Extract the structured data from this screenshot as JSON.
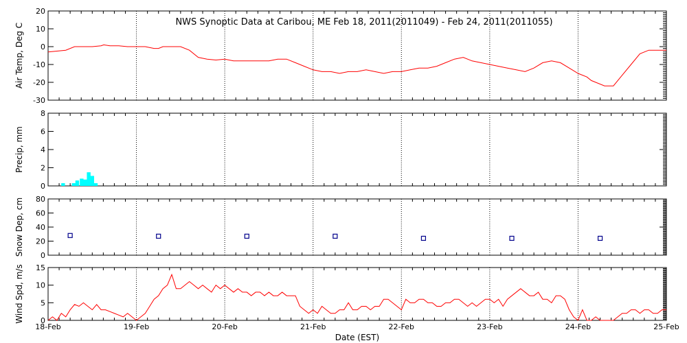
{
  "title": "NWS Synoptic Data at Caribou, ME   Feb 18, 2011(2011049) - Feb 24, 2011(2011055)",
  "xlabel": "Date (EST)",
  "x_tick_labels": [
    "18-Feb",
    "19-Feb",
    "20-Feb",
    "21-Feb",
    "22-Feb",
    "23-Feb",
    "24-Feb",
    "25-Feb"
  ],
  "colors": {
    "temp": "#ff0000",
    "precip": "#00ffff",
    "snow": "#00008b",
    "wind": "#ff0000"
  },
  "chart_data": [
    {
      "type": "line",
      "ylabel": "Air Temp, Deg C",
      "ylim": [
        -30,
        20
      ],
      "yticks": [
        -30,
        -20,
        -10,
        0,
        10,
        20
      ],
      "xlim": [
        0,
        7
      ],
      "grid": true,
      "x": [
        0,
        0.2,
        0.3,
        0.4,
        0.5,
        0.6,
        0.63,
        0.7,
        0.8,
        0.9,
        1.0,
        1.1,
        1.2,
        1.25,
        1.3,
        1.4,
        1.5,
        1.6,
        1.7,
        1.8,
        1.9,
        2.0,
        2.1,
        2.2,
        2.3,
        2.4,
        2.5,
        2.6,
        2.7,
        2.8,
        2.9,
        3.0,
        3.1,
        3.2,
        3.3,
        3.4,
        3.5,
        3.6,
        3.7,
        3.8,
        3.9,
        4.0,
        4.1,
        4.2,
        4.3,
        4.4,
        4.5,
        4.6,
        4.7,
        4.8,
        4.9,
        5.0,
        5.1,
        5.2,
        5.3,
        5.4,
        5.5,
        5.6,
        5.7,
        5.8,
        5.9,
        6.0,
        6.1,
        6.15,
        6.2,
        6.3,
        6.4,
        6.5,
        6.6,
        6.7,
        6.8,
        6.9,
        7.0
      ],
      "y": [
        -3,
        -2,
        0,
        0,
        0,
        0.5,
        1,
        0.5,
        0.5,
        0,
        0,
        0,
        -1,
        -1,
        0,
        0,
        0,
        -2,
        -6,
        -7,
        -7.5,
        -7,
        -8,
        -8,
        -8,
        -8,
        -8,
        -7,
        -7,
        -9,
        -11,
        -13,
        -14,
        -14,
        -15,
        -14,
        -14,
        -13,
        -14,
        -15,
        -14,
        -14,
        -13,
        -12,
        -12,
        -11,
        -9,
        -7,
        -6,
        -8,
        -9,
        -10,
        -11,
        -12,
        -13,
        -14,
        -12,
        -9,
        -8,
        -9,
        -12,
        -15,
        -17,
        -19,
        -20,
        -22,
        -22,
        -16,
        -10,
        -4,
        -2,
        -2,
        -2
      ]
    },
    {
      "type": "bar",
      "ylabel": "Precip, mm",
      "ylim": [
        0,
        8
      ],
      "yticks": [
        0,
        2,
        4,
        6,
        8
      ],
      "xlim": [
        0,
        7
      ],
      "grid": true,
      "bar_width": 0.042,
      "x": [
        0.17,
        0.29,
        0.33,
        0.38,
        0.42,
        0.46,
        0.5,
        0.54
      ],
      "values": [
        0.3,
        0.3,
        0.6,
        0.8,
        0.7,
        1.5,
        1.1,
        0.3
      ]
    },
    {
      "type": "scatter",
      "ylabel": "Snow Dep, cm",
      "ylim": [
        0,
        80
      ],
      "yticks": [
        0,
        20,
        40,
        60,
        80
      ],
      "xlim": [
        0,
        7
      ],
      "grid": true,
      "x": [
        0.25,
        1.25,
        2.25,
        3.25,
        4.25,
        5.25,
        6.25
      ],
      "y": [
        28,
        27,
        27,
        27,
        24,
        24,
        24
      ]
    },
    {
      "type": "line",
      "ylabel": "Wind Spd, m/s",
      "ylim": [
        0,
        15
      ],
      "yticks": [
        0,
        5,
        10,
        15
      ],
      "xlim": [
        0,
        7
      ],
      "grid": true,
      "x": [
        0,
        0.05,
        0.1,
        0.15,
        0.2,
        0.25,
        0.3,
        0.35,
        0.4,
        0.45,
        0.5,
        0.55,
        0.6,
        0.65,
        0.7,
        0.75,
        0.8,
        0.85,
        0.9,
        0.95,
        1.0,
        1.05,
        1.1,
        1.15,
        1.2,
        1.25,
        1.3,
        1.35,
        1.4,
        1.45,
        1.5,
        1.55,
        1.6,
        1.65,
        1.7,
        1.75,
        1.8,
        1.85,
        1.9,
        1.95,
        2.0,
        2.05,
        2.1,
        2.15,
        2.2,
        2.25,
        2.3,
        2.35,
        2.4,
        2.45,
        2.5,
        2.55,
        2.6,
        2.65,
        2.7,
        2.75,
        2.8,
        2.85,
        2.9,
        2.95,
        3.0,
        3.05,
        3.1,
        3.15,
        3.2,
        3.25,
        3.3,
        3.35,
        3.4,
        3.45,
        3.5,
        3.55,
        3.6,
        3.65,
        3.7,
        3.75,
        3.8,
        3.85,
        3.9,
        3.95,
        4.0,
        4.05,
        4.1,
        4.15,
        4.2,
        4.25,
        4.3,
        4.35,
        4.4,
        4.45,
        4.5,
        4.55,
        4.6,
        4.65,
        4.7,
        4.75,
        4.8,
        4.85,
        4.9,
        4.95,
        5.0,
        5.05,
        5.1,
        5.15,
        5.2,
        5.25,
        5.3,
        5.35,
        5.4,
        5.45,
        5.5,
        5.55,
        5.6,
        5.65,
        5.7,
        5.75,
        5.8,
        5.85,
        5.9,
        5.95,
        6.0,
        6.05,
        6.1,
        6.15,
        6.2,
        6.25,
        6.3,
        6.35,
        6.4,
        6.45,
        6.5,
        6.55,
        6.6,
        6.65,
        6.7,
        6.75,
        6.8,
        6.85,
        6.9,
        6.95,
        7.0
      ],
      "y": [
        0,
        1,
        0,
        2,
        1,
        3,
        4.5,
        4,
        5,
        4,
        3,
        4.5,
        3,
        3,
        2.5,
        2,
        1.5,
        1,
        2,
        1,
        0,
        1,
        2,
        4,
        6,
        7,
        9,
        10,
        13,
        9,
        9,
        10,
        11,
        10,
        9,
        10,
        9,
        8,
        10,
        9,
        10,
        9,
        8,
        9,
        8,
        8,
        7,
        8,
        8,
        7,
        8,
        7,
        7,
        8,
        7,
        7,
        7,
        4,
        3,
        2,
        3,
        2,
        4,
        3,
        2,
        2,
        3,
        3,
        5,
        3,
        3,
        4,
        4,
        3,
        4,
        4,
        6,
        6,
        5,
        4,
        3,
        6,
        5,
        5,
        6,
        6,
        5,
        5,
        4,
        4,
        5,
        5,
        6,
        6,
        5,
        4,
        5,
        4,
        5,
        6,
        6,
        5,
        6,
        4,
        6,
        7,
        8,
        9,
        8,
        7,
        7,
        8,
        6,
        6,
        5,
        7,
        7,
        6,
        3,
        1,
        0,
        3,
        0,
        0,
        1,
        0,
        0,
        0,
        0,
        1,
        2,
        2,
        3,
        3,
        2,
        3,
        3,
        2,
        2,
        3,
        3
      ]
    }
  ]
}
